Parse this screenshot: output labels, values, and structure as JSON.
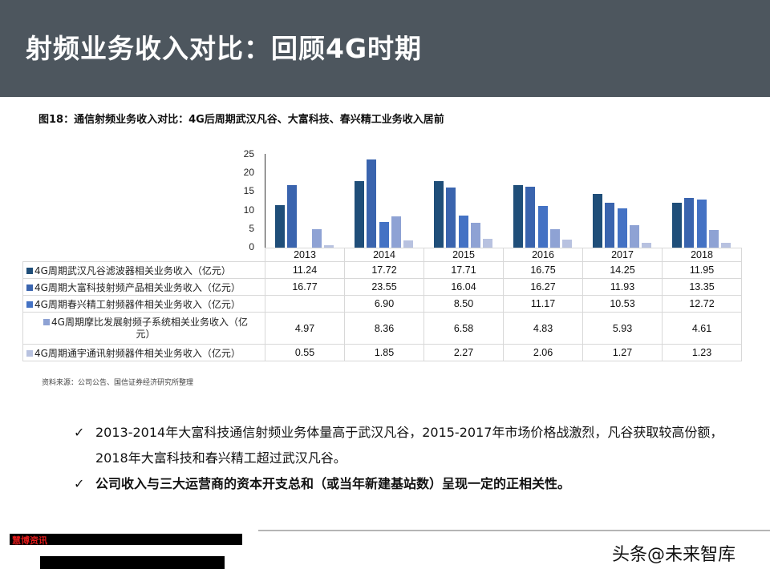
{
  "header": {
    "title": "射频业务收入对比：回顾4G时期"
  },
  "figure": {
    "caption": "图18：通信射频业务收入对比：4G后周期武汉凡谷、大富科技、春兴精工业务收入居前",
    "source": "资料来源：公司公告、国信证券经济研究所整理"
  },
  "chart_data": {
    "type": "bar",
    "title": "通信射频业务收入对比：4G后周期武汉凡谷、大富科技、春兴精工业务收入居前",
    "xlabel": "",
    "ylabel": "",
    "ylim": [
      0,
      25
    ],
    "yticks": [
      "25",
      "20",
      "15",
      "10",
      "5",
      "0"
    ],
    "categories": [
      "2013",
      "2014",
      "2015",
      "2016",
      "2017",
      "2018"
    ],
    "legend_position": "table-below",
    "grid": false,
    "series": [
      {
        "name": "4G周期武汉凡谷滤波器相关业务收入（亿元）",
        "color": "#1f4e79",
        "values": [
          11.24,
          17.72,
          17.71,
          16.75,
          14.25,
          11.95
        ],
        "display": [
          "11.24",
          "17.72",
          "17.71",
          "16.75",
          "14.25",
          "11.95"
        ]
      },
      {
        "name": "4G周期大富科技射频产品相关业务收入（亿元）",
        "color": "#3a64ae",
        "values": [
          16.77,
          23.55,
          16.04,
          16.27,
          11.93,
          13.35
        ],
        "display": [
          "16.77",
          "23.55",
          "16.04",
          "16.27",
          "11.93",
          "13.35"
        ]
      },
      {
        "name": "4G周期春兴精工射频器件相关业务收入（亿元）",
        "color": "#4472c4",
        "values": [
          null,
          6.9,
          8.5,
          11.17,
          10.53,
          12.72
        ],
        "display": [
          "",
          "6.90",
          "8.50",
          "11.17",
          "10.53",
          "12.72"
        ]
      },
      {
        "name": "4G周期摩比发展射频子系统相关业务收入（亿元）",
        "name_line1": "4G周期摩比发展射频子系统相关业务收入（亿",
        "name_line2": "元）",
        "color": "#8ea2d4",
        "values": [
          4.97,
          8.36,
          6.58,
          4.83,
          5.93,
          4.61
        ],
        "display": [
          "4.97",
          "8.36",
          "6.58",
          "4.83",
          "5.93",
          "4.61"
        ]
      },
      {
        "name": "4G周期通宇通讯射频器件相关业务收入（亿元）",
        "color": "#b8c2e0",
        "values": [
          0.55,
          1.85,
          2.27,
          2.06,
          1.27,
          1.23
        ],
        "display": [
          "0.55",
          "1.85",
          "2.27",
          "2.06",
          "1.27",
          "1.23"
        ]
      }
    ]
  },
  "bullets": [
    {
      "check": "✓",
      "text": "2013-2014年大富科技通信射频业务体量高于武汉凡谷，2015-2017年市场价格战激烈，凡谷获取较高份额，2018年大富科技和春兴精工超过武汉凡谷。"
    },
    {
      "check": "✓",
      "text": "公司收入与三大运营商的资本开支总和（或当年新建基站数）呈现一定的正相关性。"
    }
  ],
  "footer": {
    "redacted_label": "慧博资讯",
    "watermark": "头条@未来智库"
  }
}
